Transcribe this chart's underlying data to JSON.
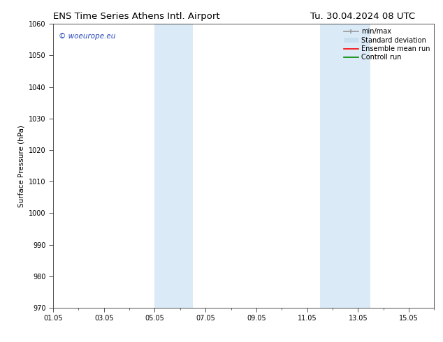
{
  "title_left": "ENS Time Series Athens Intl. Airport",
  "title_right": "Tu. 30.04.2024 08 UTC",
  "ylabel": "Surface Pressure (hPa)",
  "ylim": [
    970,
    1060
  ],
  "yticks": [
    970,
    980,
    990,
    1000,
    1010,
    1020,
    1030,
    1040,
    1050,
    1060
  ],
  "xtick_labels": [
    "01.05",
    "03.05",
    "05.05",
    "07.05",
    "09.05",
    "11.05",
    "13.05",
    "15.05"
  ],
  "xtick_positions": [
    0,
    2,
    4,
    6,
    8,
    10,
    12,
    14
  ],
  "xlim": [
    0,
    15
  ],
  "background_color": "#ffffff",
  "shaded_bands": [
    {
      "x_start": 4.0,
      "x_end": 5.5,
      "color": "#daeaf7"
    },
    {
      "x_start": 10.5,
      "x_end": 12.5,
      "color": "#daeaf7"
    }
  ],
  "watermark_text": "© woeurope.eu",
  "watermark_color": "#2244bb",
  "legend_items": [
    {
      "label": "min/max",
      "color": "#999999",
      "lw": 1.2,
      "style": "line_with_caps"
    },
    {
      "label": "Standard deviation",
      "color": "#c8dff0",
      "lw": 5,
      "style": "thick"
    },
    {
      "label": "Ensemble mean run",
      "color": "#ff0000",
      "lw": 1.2,
      "style": "line"
    },
    {
      "label": "Controll run",
      "color": "#008800",
      "lw": 1.2,
      "style": "line"
    }
  ],
  "title_fontsize": 9.5,
  "tick_fontsize": 7,
  "label_fontsize": 7.5,
  "watermark_fontsize": 7.5,
  "legend_fontsize": 7
}
